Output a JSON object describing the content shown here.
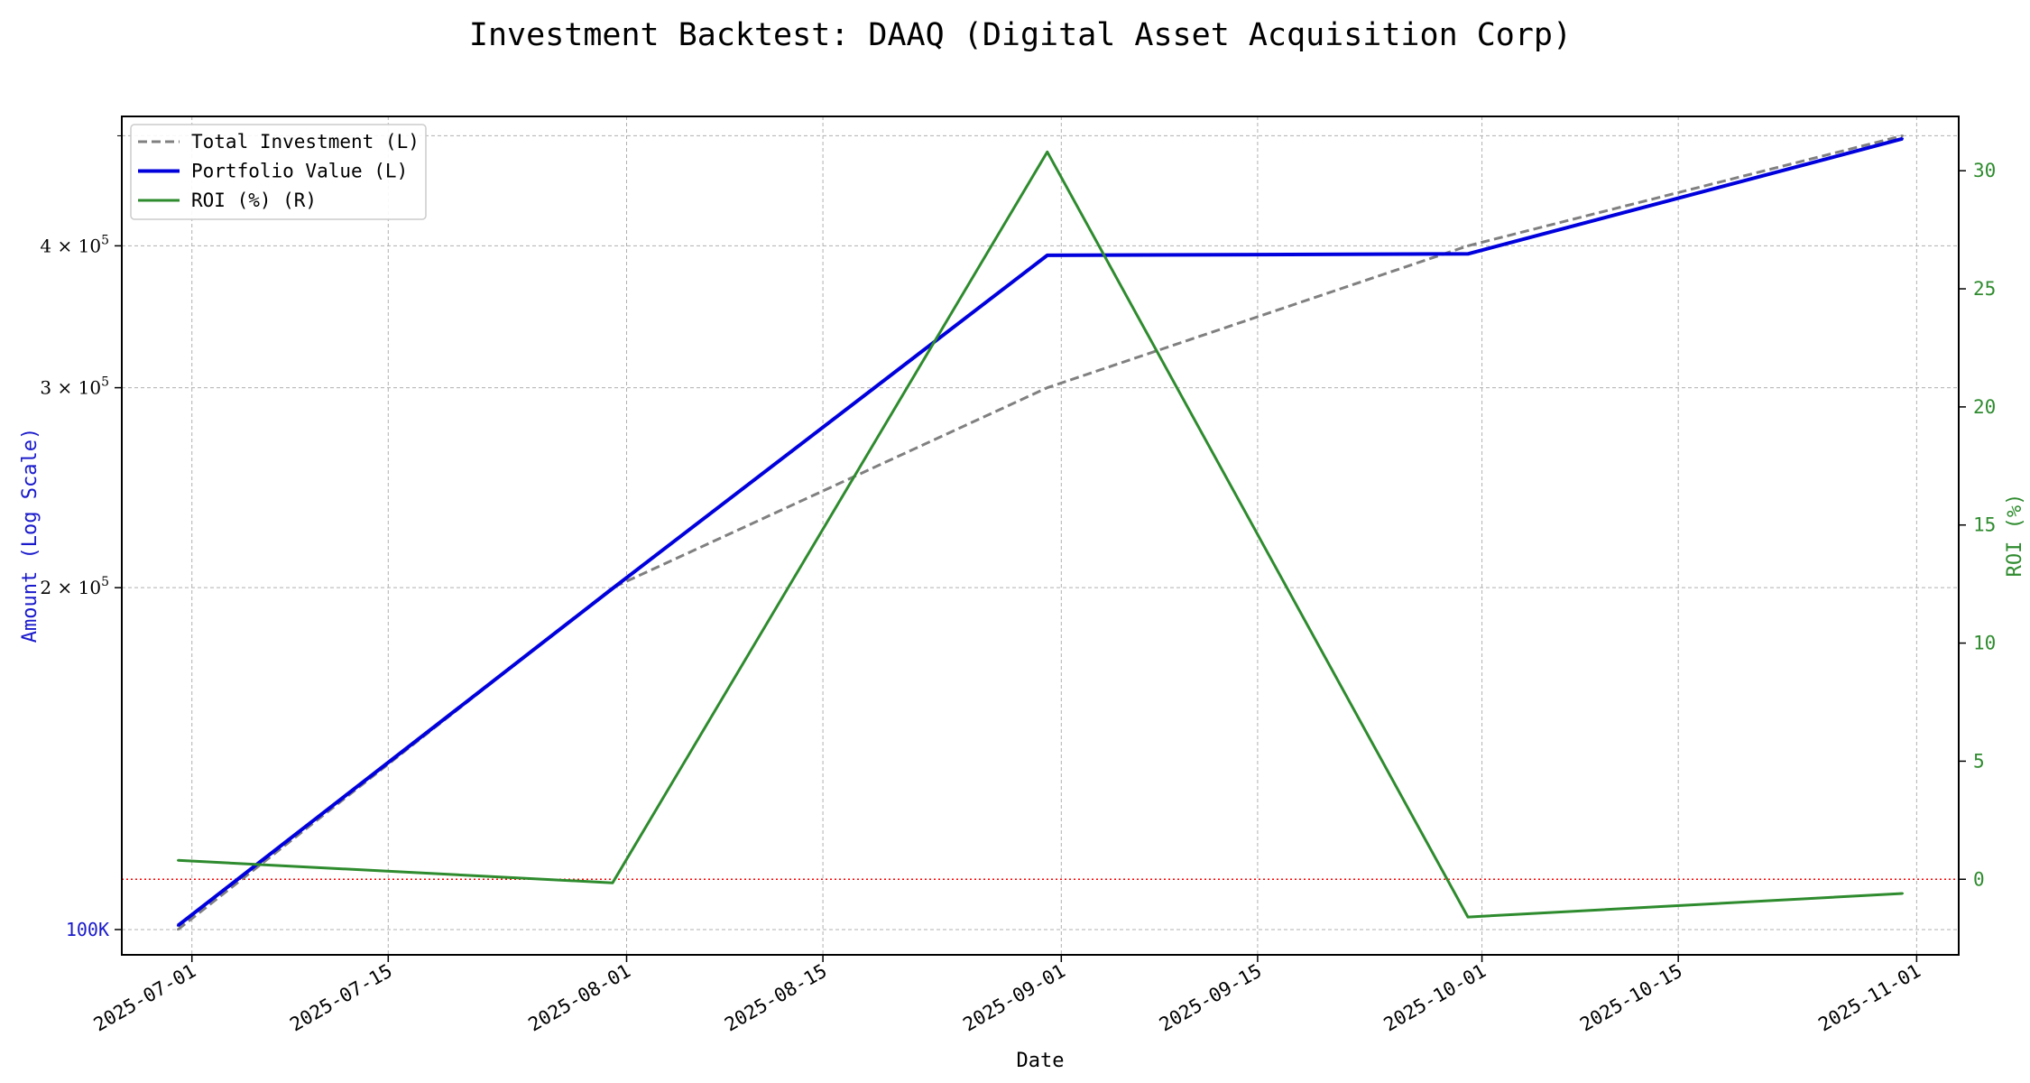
{
  "chart_data": {
    "type": "line",
    "title": "Investment Backtest: DAAQ (Digital Asset Acquisition Corp)",
    "xlabel": "Date",
    "ylabel_left": "Amount (Log Scale)",
    "ylabel_right": "ROI (%)",
    "y_left_scale": "log",
    "y_left_range": [
      95000,
      520000
    ],
    "y_right_range": [
      -3.2,
      32.3
    ],
    "x_range": [
      "2025-06-26",
      "2025-11-04"
    ],
    "grid": true,
    "legend_position": "top-left",
    "x_tick_labels": [
      "2025-07-01",
      "2025-07-15",
      "2025-08-01",
      "2025-08-15",
      "2025-09-01",
      "2025-09-15",
      "2025-10-01",
      "2025-10-15",
      "2025-11-01"
    ],
    "y_left_ticks": [
      {
        "value": 100000,
        "base": "",
        "exp": "",
        "label": "100K",
        "color": "#1a1acc"
      },
      {
        "value": 200000,
        "base": "2 × 10",
        "exp": "5",
        "label": "",
        "color": "#000000"
      },
      {
        "value": 300000,
        "base": "3 × 10",
        "exp": "5",
        "label": "",
        "color": "#000000"
      },
      {
        "value": 400000,
        "base": "4 × 10",
        "exp": "5",
        "label": "",
        "color": "#000000"
      }
    ],
    "y_left_minor_ticks": [
      500000
    ],
    "y_right_ticks": [
      0,
      5,
      10,
      15,
      20,
      25,
      30
    ],
    "reference_line": {
      "axis": "right",
      "value": 0,
      "color": "#ff0000",
      "style": "dotted"
    },
    "x": [
      "2025-06-30",
      "2025-07-31",
      "2025-08-31",
      "2025-09-30",
      "2025-10-31"
    ],
    "series": [
      {
        "name": "Total Investment (L)",
        "axis": "left",
        "color": "#808080",
        "style": "dashed",
        "values": [
          100000,
          200000,
          300000,
          400000,
          500000
        ]
      },
      {
        "name": "Portfolio Value (L)",
        "axis": "left",
        "color": "#0000dd",
        "style": "solid",
        "values": [
          100800,
          199700,
          392400,
          393500,
          497000
        ]
      },
      {
        "name": "ROI (%) (R)",
        "axis": "right",
        "color": "#2e8b2e",
        "style": "solid",
        "values": [
          0.8,
          -0.15,
          30.8,
          -1.6,
          -0.6
        ]
      }
    ]
  }
}
